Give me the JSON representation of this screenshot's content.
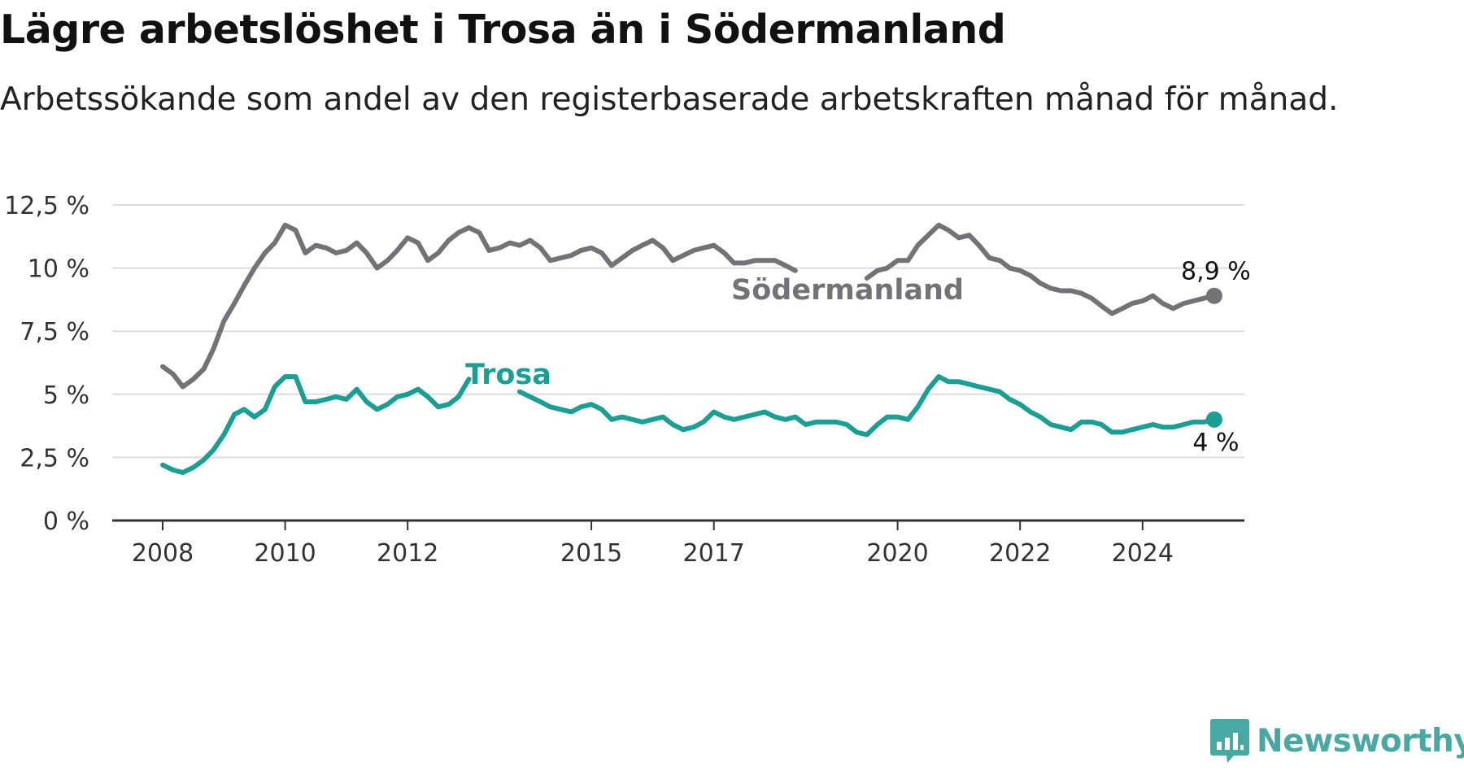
{
  "title": "Lägre arbetslöshet i Trosa än i Södermanland",
  "subtitle": "Arbetssökande som andel av den registerbaserade arbetskraften månad för månad.",
  "brand": {
    "name": "Newsworthy",
    "logo_icon": "bar-chart-speech-bubble-icon"
  },
  "colors": {
    "sodermanland": "#737377",
    "trosa": "#1b9e93",
    "grid": "#dddddd",
    "axis": "#333333",
    "brand": "#48a8a2"
  },
  "chart_data": {
    "type": "line",
    "ylim": [
      0,
      12.5
    ],
    "yticks": [
      0,
      2.5,
      5,
      7.5,
      10,
      12.5
    ],
    "ytick_labels": [
      "0 %",
      "2,5 %",
      "5 %",
      "7,5 %",
      "10 %",
      "12,5 %"
    ],
    "xlim": [
      2008.0,
      2025.67
    ],
    "xticks": [
      2008,
      2010,
      2012,
      2015,
      2017,
      2020,
      2022,
      2024
    ],
    "xtick_labels": [
      "2008",
      "2010",
      "2012",
      "2015",
      "2017",
      "2020",
      "2022",
      "2024"
    ],
    "grid": true,
    "series": [
      {
        "name": "Södermanland",
        "color": "#737377",
        "end_label": "8,9 %",
        "points": [
          [
            2008.0,
            6.1
          ],
          [
            2008.17,
            5.8
          ],
          [
            2008.33,
            5.3
          ],
          [
            2008.5,
            5.6
          ],
          [
            2008.67,
            6.0
          ],
          [
            2008.83,
            6.8
          ],
          [
            2009.0,
            7.9
          ],
          [
            2009.17,
            8.6
          ],
          [
            2009.33,
            9.3
          ],
          [
            2009.5,
            10.0
          ],
          [
            2009.67,
            10.6
          ],
          [
            2009.83,
            11.0
          ],
          [
            2010.0,
            11.7
          ],
          [
            2010.17,
            11.5
          ],
          [
            2010.33,
            10.6
          ],
          [
            2010.5,
            10.9
          ],
          [
            2010.67,
            10.8
          ],
          [
            2010.83,
            10.6
          ],
          [
            2011.0,
            10.7
          ],
          [
            2011.17,
            11.0
          ],
          [
            2011.33,
            10.6
          ],
          [
            2011.5,
            10.0
          ],
          [
            2011.67,
            10.3
          ],
          [
            2011.83,
            10.7
          ],
          [
            2012.0,
            11.2
          ],
          [
            2012.17,
            11.0
          ],
          [
            2012.33,
            10.3
          ],
          [
            2012.5,
            10.6
          ],
          [
            2012.67,
            11.1
          ],
          [
            2012.83,
            11.4
          ],
          [
            2013.0,
            11.6
          ],
          [
            2013.17,
            11.4
          ],
          [
            2013.33,
            10.7
          ],
          [
            2013.5,
            10.8
          ],
          [
            2013.67,
            11.0
          ],
          [
            2013.83,
            10.9
          ],
          [
            2014.0,
            11.1
          ],
          [
            2014.17,
            10.8
          ],
          [
            2014.33,
            10.3
          ],
          [
            2014.5,
            10.4
          ],
          [
            2014.67,
            10.5
          ],
          [
            2014.83,
            10.7
          ],
          [
            2015.0,
            10.8
          ],
          [
            2015.17,
            10.6
          ],
          [
            2015.33,
            10.1
          ],
          [
            2015.5,
            10.4
          ],
          [
            2015.67,
            10.7
          ],
          [
            2015.83,
            10.9
          ],
          [
            2016.0,
            11.1
          ],
          [
            2016.17,
            10.8
          ],
          [
            2016.33,
            10.3
          ],
          [
            2016.5,
            10.5
          ],
          [
            2016.67,
            10.7
          ],
          [
            2016.83,
            10.8
          ],
          [
            2017.0,
            10.9
          ],
          [
            2017.17,
            10.6
          ],
          [
            2017.33,
            10.2
          ],
          [
            2017.5,
            10.2
          ],
          [
            2017.67,
            10.3
          ],
          [
            2017.83,
            10.3
          ],
          [
            2018.0,
            10.3
          ],
          [
            2018.17,
            10.1
          ],
          [
            2018.33,
            9.9
          ],
          null,
          [
            2019.5,
            9.6
          ],
          [
            2019.67,
            9.9
          ],
          [
            2019.83,
            10.0
          ],
          [
            2020.0,
            10.3
          ],
          [
            2020.17,
            10.3
          ],
          [
            2020.33,
            10.9
          ],
          [
            2020.5,
            11.3
          ],
          [
            2020.67,
            11.7
          ],
          [
            2020.83,
            11.5
          ],
          [
            2021.0,
            11.2
          ],
          [
            2021.17,
            11.3
          ],
          [
            2021.33,
            10.9
          ],
          [
            2021.5,
            10.4
          ],
          [
            2021.67,
            10.3
          ],
          [
            2021.83,
            10.0
          ],
          [
            2022.0,
            9.9
          ],
          [
            2022.17,
            9.7
          ],
          [
            2022.33,
            9.4
          ],
          [
            2022.5,
            9.2
          ],
          [
            2022.67,
            9.1
          ],
          [
            2022.83,
            9.1
          ],
          [
            2023.0,
            9.0
          ],
          [
            2023.17,
            8.8
          ],
          [
            2023.33,
            8.5
          ],
          [
            2023.5,
            8.2
          ],
          [
            2023.67,
            8.4
          ],
          [
            2023.83,
            8.6
          ],
          [
            2024.0,
            8.7
          ],
          [
            2024.17,
            8.9
          ],
          [
            2024.33,
            8.6
          ],
          [
            2024.5,
            8.4
          ],
          [
            2024.67,
            8.6
          ],
          [
            2024.83,
            8.7
          ],
          [
            2025.0,
            8.8
          ],
          [
            2025.17,
            8.9
          ]
        ]
      },
      {
        "name": "Trosa",
        "color": "#1b9e93",
        "end_label": "4 %",
        "points": [
          [
            2008.0,
            2.2
          ],
          [
            2008.17,
            2.0
          ],
          [
            2008.33,
            1.9
          ],
          [
            2008.5,
            2.1
          ],
          [
            2008.67,
            2.4
          ],
          [
            2008.83,
            2.8
          ],
          [
            2009.0,
            3.4
          ],
          [
            2009.17,
            4.2
          ],
          [
            2009.33,
            4.4
          ],
          [
            2009.5,
            4.1
          ],
          [
            2009.67,
            4.4
          ],
          [
            2009.83,
            5.3
          ],
          [
            2010.0,
            5.7
          ],
          [
            2010.17,
            5.7
          ],
          [
            2010.33,
            4.7
          ],
          [
            2010.5,
            4.7
          ],
          [
            2010.67,
            4.8
          ],
          [
            2010.83,
            4.9
          ],
          [
            2011.0,
            4.8
          ],
          [
            2011.17,
            5.2
          ],
          [
            2011.33,
            4.7
          ],
          [
            2011.5,
            4.4
          ],
          [
            2011.67,
            4.6
          ],
          [
            2011.83,
            4.9
          ],
          [
            2012.0,
            5.0
          ],
          [
            2012.17,
            5.2
          ],
          [
            2012.33,
            4.9
          ],
          [
            2012.5,
            4.5
          ],
          [
            2012.67,
            4.6
          ],
          [
            2012.83,
            4.9
          ],
          [
            2013.0,
            5.6
          ],
          null,
          [
            2013.83,
            5.1
          ],
          [
            2014.0,
            4.9
          ],
          [
            2014.17,
            4.7
          ],
          [
            2014.33,
            4.5
          ],
          [
            2014.5,
            4.4
          ],
          [
            2014.67,
            4.3
          ],
          [
            2014.83,
            4.5
          ],
          [
            2015.0,
            4.6
          ],
          [
            2015.17,
            4.4
          ],
          [
            2015.33,
            4.0
          ],
          [
            2015.5,
            4.1
          ],
          [
            2015.67,
            4.0
          ],
          [
            2015.83,
            3.9
          ],
          [
            2016.0,
            4.0
          ],
          [
            2016.17,
            4.1
          ],
          [
            2016.33,
            3.8
          ],
          [
            2016.5,
            3.6
          ],
          [
            2016.67,
            3.7
          ],
          [
            2016.83,
            3.9
          ],
          [
            2017.0,
            4.3
          ],
          [
            2017.17,
            4.1
          ],
          [
            2017.33,
            4.0
          ],
          [
            2017.5,
            4.1
          ],
          [
            2017.67,
            4.2
          ],
          [
            2017.83,
            4.3
          ],
          [
            2018.0,
            4.1
          ],
          [
            2018.17,
            4.0
          ],
          [
            2018.33,
            4.1
          ],
          [
            2018.5,
            3.8
          ],
          [
            2018.67,
            3.9
          ],
          [
            2018.83,
            3.9
          ],
          [
            2019.0,
            3.9
          ],
          [
            2019.17,
            3.8
          ],
          [
            2019.33,
            3.5
          ],
          [
            2019.5,
            3.4
          ],
          [
            2019.67,
            3.8
          ],
          [
            2019.83,
            4.1
          ],
          [
            2020.0,
            4.1
          ],
          [
            2020.17,
            4.0
          ],
          [
            2020.33,
            4.5
          ],
          [
            2020.5,
            5.2
          ],
          [
            2020.67,
            5.7
          ],
          [
            2020.83,
            5.5
          ],
          [
            2021.0,
            5.5
          ],
          [
            2021.17,
            5.4
          ],
          [
            2021.33,
            5.3
          ],
          [
            2021.5,
            5.2
          ],
          [
            2021.67,
            5.1
          ],
          [
            2021.83,
            4.8
          ],
          [
            2022.0,
            4.6
          ],
          [
            2022.17,
            4.3
          ],
          [
            2022.33,
            4.1
          ],
          [
            2022.5,
            3.8
          ],
          [
            2022.67,
            3.7
          ],
          [
            2022.83,
            3.6
          ],
          [
            2023.0,
            3.9
          ],
          [
            2023.17,
            3.9
          ],
          [
            2023.33,
            3.8
          ],
          [
            2023.5,
            3.5
          ],
          [
            2023.67,
            3.5
          ],
          [
            2023.83,
            3.6
          ],
          [
            2024.0,
            3.7
          ],
          [
            2024.17,
            3.8
          ],
          [
            2024.33,
            3.7
          ],
          [
            2024.5,
            3.7
          ],
          [
            2024.67,
            3.8
          ],
          [
            2024.83,
            3.9
          ],
          [
            2025.0,
            3.9
          ],
          [
            2025.17,
            4.0
          ]
        ]
      }
    ],
    "annotations": [
      {
        "series": "Södermanland",
        "text": "Södermanland"
      },
      {
        "series": "Trosa",
        "text": "Trosa"
      }
    ]
  }
}
